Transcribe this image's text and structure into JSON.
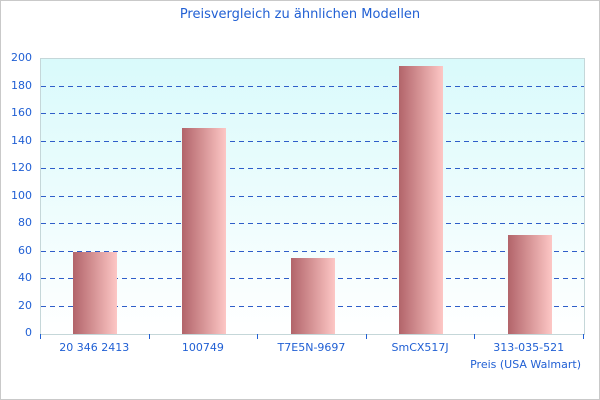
{
  "chart_data": {
    "type": "bar",
    "title": "Preisvergleich zu ähnlichen Modellen",
    "categories": [
      "20 346 2413",
      "100749",
      "T7E5N-9697",
      "SmCX517J",
      "313-035-521"
    ],
    "values": [
      60,
      150,
      55,
      195,
      72
    ],
    "xlabel": "Preis (USA Walmart)",
    "ylabel": "",
    "ylim": [
      0,
      200
    ],
    "ytick_step": 20,
    "yticks": [
      0,
      20,
      40,
      60,
      80,
      100,
      120,
      140,
      160,
      180,
      200
    ],
    "grid": "horizontal-dashed",
    "legend": "none",
    "colors": {
      "text": "#2160d4",
      "grid": "#2e5ec9",
      "plot_bg_top": "#d9fafb",
      "plot_bg_bottom": "#ffffff",
      "plot_border": "#c5d7d9",
      "bar_gradient_left": "#b2646a",
      "bar_gradient_right": "#fdc7c5",
      "frame_border": "#c9c9c9",
      "page_bg": "#ffffff"
    }
  }
}
